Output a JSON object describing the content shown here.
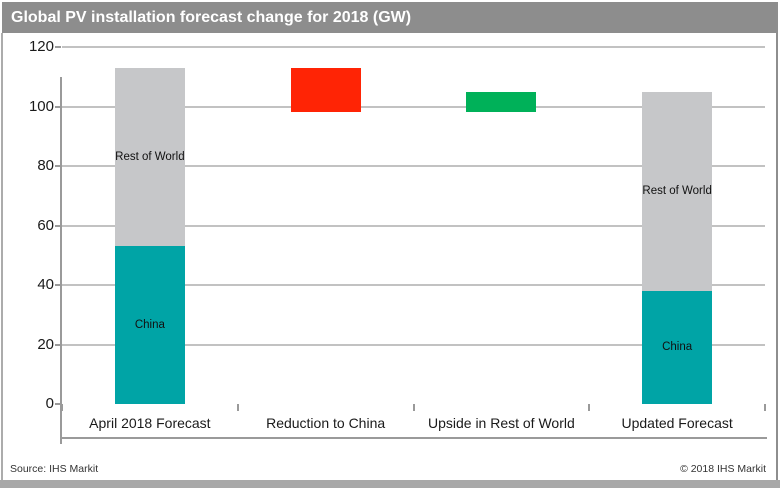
{
  "title_bar": {
    "title": "Global PV installation forecast change for 2018 (GW)"
  },
  "footer": {
    "source": "Source: IHS Markit",
    "copyright": "© 2018 IHS Markit"
  },
  "colors": {
    "title_bar_bg": "#8D8D8D",
    "title_text": "#FFFFFF",
    "china": "#00A4A6",
    "rest_of_world": "#C6C7C9",
    "reduction": "#FF2405",
    "upside": "#00B159",
    "gridline": "#C2C2C2",
    "axis": "#9A9A9A",
    "frame_strip": "#A8A8A8"
  },
  "chart_data": {
    "type": "bar",
    "subtype": "waterfall-stacked",
    "title": "Global PV installation forecast change for 2018 (GW)",
    "unit": "GW",
    "ylim": [
      0,
      120
    ],
    "y_ticks": [
      0,
      20,
      40,
      60,
      80,
      100,
      120
    ],
    "grid": true,
    "legend": "none",
    "categories": [
      "April 2018 Forecast",
      "Reduction to China",
      "Upside in Rest of World",
      "Updated Forecast"
    ],
    "bars": [
      {
        "category": "April 2018 Forecast",
        "total": 113,
        "segments": [
          {
            "name": "china",
            "label": "China",
            "from": 0,
            "to": 53,
            "value": 53,
            "color": "#00A4A6"
          },
          {
            "name": "rest-of-world",
            "label": "Rest of World",
            "from": 53,
            "to": 113,
            "value": 60,
            "color": "#C6C7C9"
          }
        ]
      },
      {
        "category": "Reduction to China",
        "total": -15,
        "segments": [
          {
            "name": "reduction-to-china",
            "label": "",
            "from": 98,
            "to": 113,
            "value": -15,
            "color": "#FF2405"
          }
        ]
      },
      {
        "category": "Upside in Rest of World",
        "total": 7,
        "segments": [
          {
            "name": "upside-in-rest-of-world",
            "label": "",
            "from": 98,
            "to": 105,
            "value": 7,
            "color": "#00B159"
          }
        ]
      },
      {
        "category": "Updated Forecast",
        "total": 105,
        "segments": [
          {
            "name": "china",
            "label": "China",
            "from": 0,
            "to": 38,
            "value": 38,
            "color": "#00A4A6"
          },
          {
            "name": "rest-of-world",
            "label": "Rest of World",
            "from": 38,
            "to": 105,
            "value": 67,
            "color": "#C6C7C9"
          }
        ]
      }
    ]
  }
}
